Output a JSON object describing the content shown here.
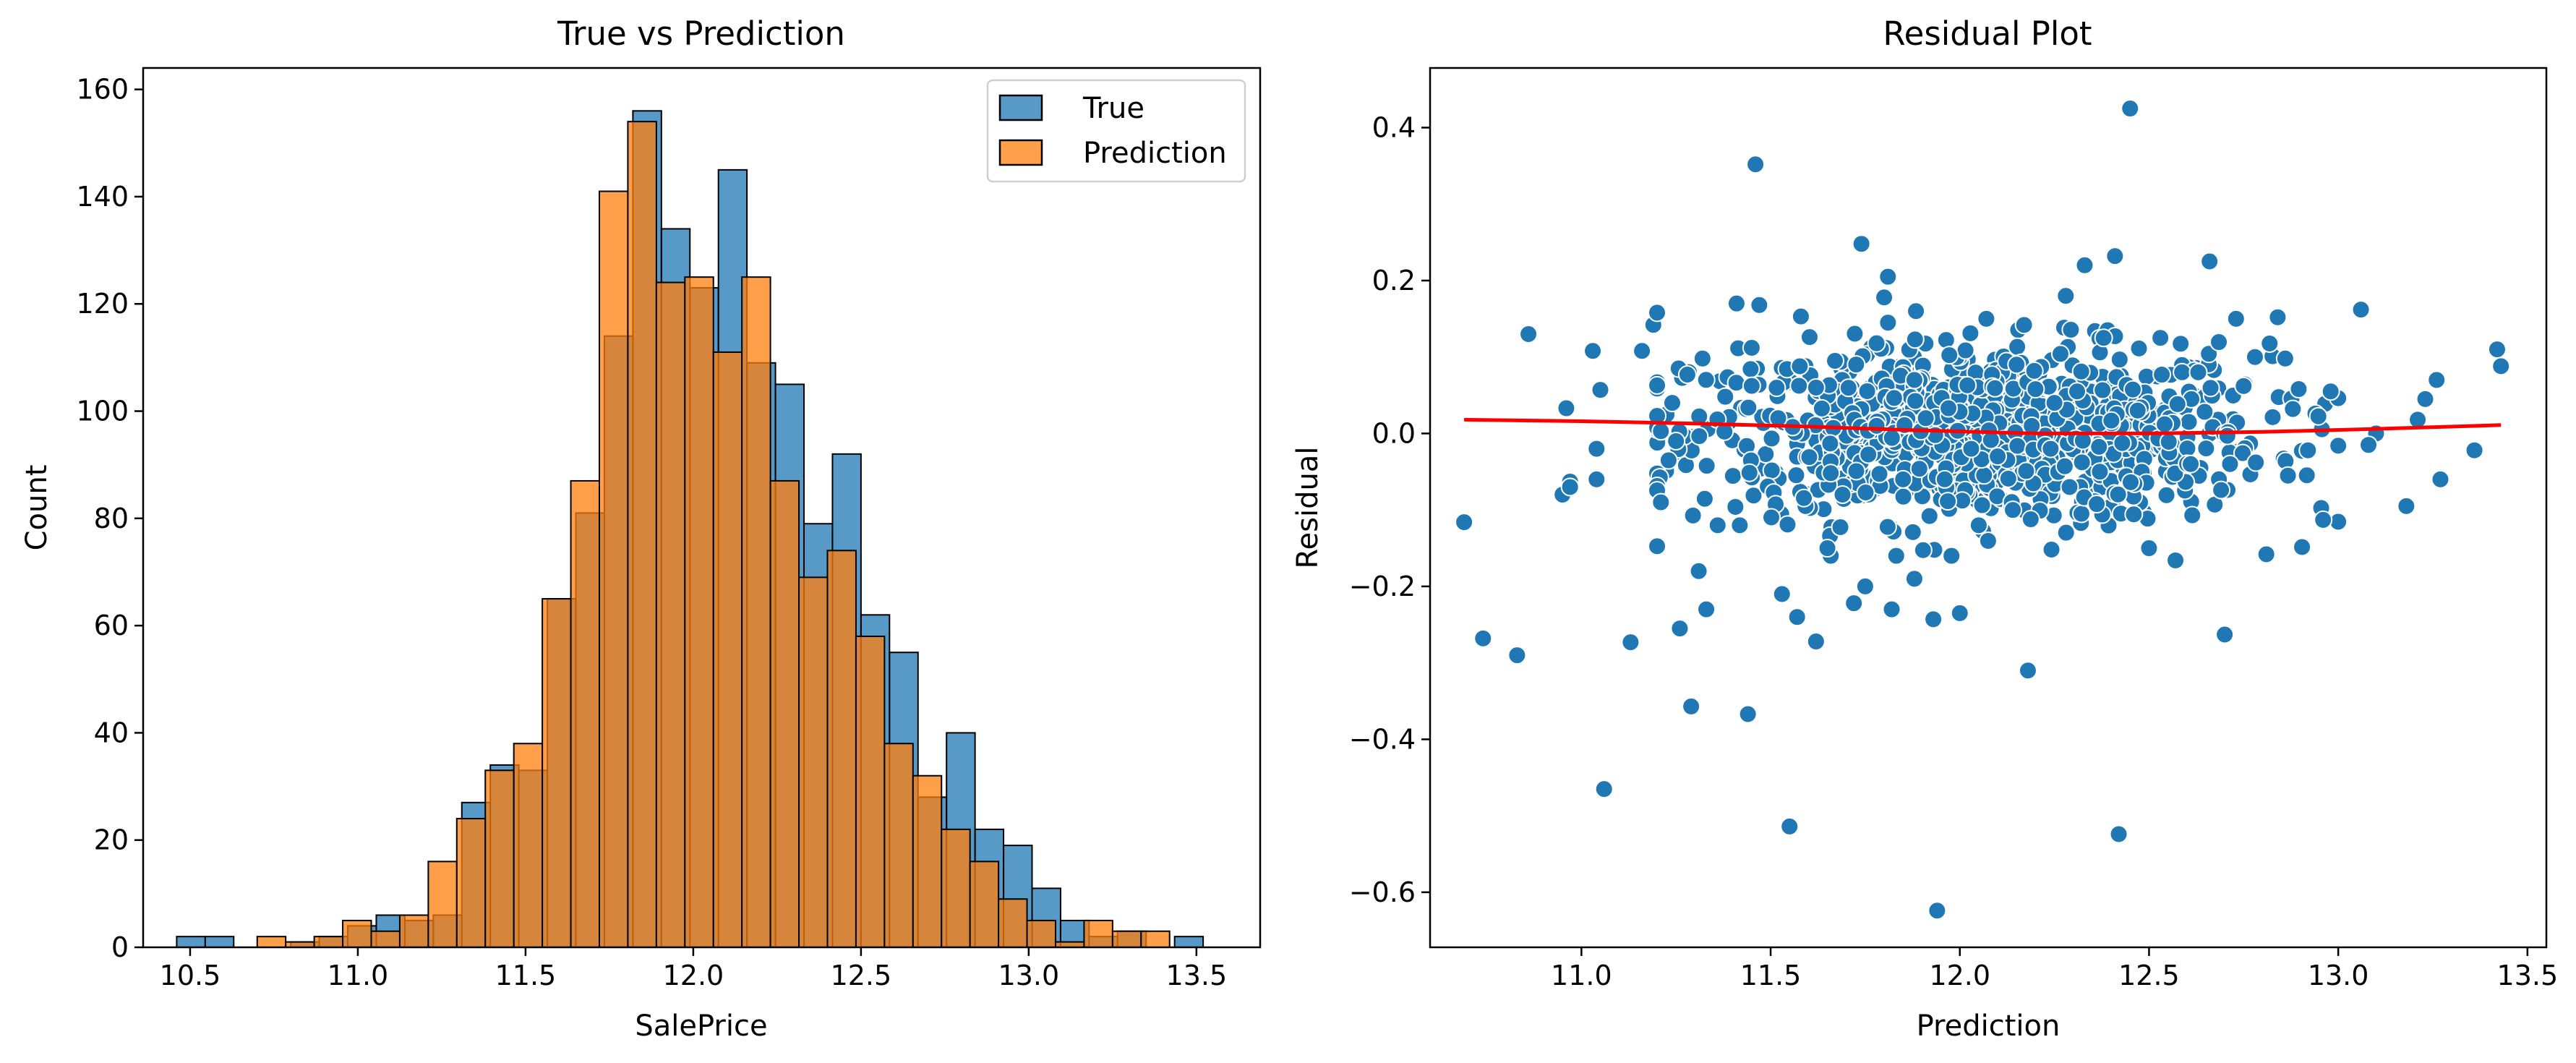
{
  "colors": {
    "true_bar": "#1f77b4",
    "prediction_bar": "#ff7f0e",
    "scatter_point": "#1f77b4",
    "trend_line": "#ff0000"
  },
  "chart_data": [
    {
      "type": "histogram",
      "title": "True vs Prediction",
      "xlabel": "SalePrice",
      "ylabel": "Count",
      "xlim": [
        10.36,
        13.69
      ],
      "ylim": [
        0,
        164
      ],
      "xticks": [
        10.5,
        11.0,
        11.5,
        12.0,
        12.5,
        13.0,
        13.5
      ],
      "xtick_labels": [
        "10.5",
        "11.0",
        "11.5",
        "12.0",
        "12.5",
        "13.0",
        "13.5"
      ],
      "yticks": [
        0,
        20,
        40,
        60,
        80,
        100,
        120,
        140,
        160
      ],
      "ytick_labels": [
        "0",
        "20",
        "40",
        "60",
        "80",
        "100",
        "120",
        "140",
        "160"
      ],
      "legend": "top-right",
      "series": [
        {
          "name": "True",
          "bins": [
            [
              10.46,
              10.545,
              2
            ],
            [
              10.545,
              10.63,
              2
            ],
            [
              10.8,
              10.885,
              1
            ],
            [
              10.885,
              10.97,
              2
            ],
            [
              10.97,
              11.055,
              4
            ],
            [
              11.055,
              11.14,
              6
            ],
            [
              11.14,
              11.225,
              5
            ],
            [
              11.225,
              11.31,
              6
            ],
            [
              11.31,
              11.395,
              27
            ],
            [
              11.395,
              11.48,
              34
            ],
            [
              11.48,
              11.565,
              33
            ],
            [
              11.565,
              11.65,
              65
            ],
            [
              11.65,
              11.735,
              81
            ],
            [
              11.735,
              11.82,
              114
            ],
            [
              11.82,
              11.905,
              156
            ],
            [
              11.905,
              11.99,
              134
            ],
            [
              11.99,
              12.075,
              123
            ],
            [
              12.075,
              12.16,
              145
            ],
            [
              12.16,
              12.245,
              109
            ],
            [
              12.245,
              12.33,
              105
            ],
            [
              12.33,
              12.415,
              79
            ],
            [
              12.415,
              12.5,
              92
            ],
            [
              12.5,
              12.585,
              62
            ],
            [
              12.585,
              12.67,
              55
            ],
            [
              12.67,
              12.755,
              28
            ],
            [
              12.755,
              12.84,
              40
            ],
            [
              12.84,
              12.925,
              22
            ],
            [
              12.925,
              13.01,
              19
            ],
            [
              13.01,
              13.095,
              11
            ],
            [
              13.095,
              13.18,
              5
            ],
            [
              13.18,
              13.265,
              2
            ],
            [
              13.265,
              13.35,
              3
            ],
            [
              13.435,
              13.52,
              2
            ]
          ]
        },
        {
          "name": "Prediction",
          "bins": [
            [
              10.7,
              10.785,
              2
            ],
            [
              10.785,
              10.87,
              1
            ],
            [
              10.87,
              10.955,
              2
            ],
            [
              10.955,
              11.04,
              5
            ],
            [
              11.04,
              11.125,
              3
            ],
            [
              11.125,
              11.21,
              6
            ],
            [
              11.21,
              11.295,
              16
            ],
            [
              11.295,
              11.38,
              24
            ],
            [
              11.38,
              11.465,
              33
            ],
            [
              11.465,
              11.55,
              38
            ],
            [
              11.55,
              11.635,
              65
            ],
            [
              11.635,
              11.72,
              87
            ],
            [
              11.72,
              11.805,
              141
            ],
            [
              11.805,
              11.89,
              154
            ],
            [
              11.89,
              11.975,
              124
            ],
            [
              11.975,
              12.06,
              125
            ],
            [
              12.06,
              12.145,
              111
            ],
            [
              12.145,
              12.23,
              125
            ],
            [
              12.23,
              12.315,
              87
            ],
            [
              12.315,
              12.4,
              69
            ],
            [
              12.4,
              12.485,
              74
            ],
            [
              12.485,
              12.57,
              58
            ],
            [
              12.57,
              12.655,
              38
            ],
            [
              12.655,
              12.74,
              32
            ],
            [
              12.74,
              12.825,
              22
            ],
            [
              12.825,
              12.91,
              16
            ],
            [
              12.91,
              12.995,
              9
            ],
            [
              12.995,
              13.08,
              5
            ],
            [
              13.08,
              13.165,
              1
            ],
            [
              13.165,
              13.25,
              5
            ],
            [
              13.25,
              13.335,
              3
            ],
            [
              13.335,
              13.42,
              3
            ]
          ]
        }
      ]
    },
    {
      "type": "scatter",
      "title": "Residual Plot",
      "xlabel": "Prediction",
      "ylabel": "Residual",
      "xlim": [
        10.6,
        13.55
      ],
      "ylim": [
        -0.672,
        0.478
      ],
      "xticks": [
        11.0,
        11.5,
        12.0,
        12.5,
        13.0,
        13.5
      ],
      "xtick_labels": [
        "11.0",
        "11.5",
        "12.0",
        "12.5",
        "13.0",
        "13.5"
      ],
      "yticks": [
        -0.6,
        -0.4,
        -0.2,
        0.0,
        0.2,
        0.4
      ],
      "ytick_labels": [
        "−0.6",
        "−0.4",
        "−0.2",
        "0.0",
        "0.2",
        "0.4"
      ],
      "points": [
        [
          10.69,
          -0.116
        ],
        [
          10.74,
          -0.268
        ],
        [
          10.83,
          -0.29
        ],
        [
          10.86,
          0.13
        ],
        [
          10.95,
          -0.08
        ],
        [
          10.96,
          0.033
        ],
        [
          10.97,
          -0.063
        ],
        [
          10.97,
          -0.07
        ],
        [
          11.03,
          0.108
        ],
        [
          11.04,
          -0.02
        ],
        [
          11.04,
          -0.06
        ],
        [
          11.05,
          0.057
        ],
        [
          11.06,
          -0.465
        ],
        [
          11.13,
          -0.273
        ],
        [
          11.16,
          0.108
        ],
        [
          11.19,
          0.142
        ],
        [
          11.2,
          0.158
        ],
        [
          11.2,
          0.023
        ],
        [
          11.21,
          -0.09
        ],
        [
          11.21,
          0.003
        ],
        [
          11.24,
          0.04
        ],
        [
          11.25,
          -0.01
        ],
        [
          11.26,
          -0.255
        ],
        [
          11.28,
          0.077
        ],
        [
          11.29,
          -0.357
        ],
        [
          11.31,
          -0.18
        ],
        [
          11.32,
          0.098
        ],
        [
          11.33,
          -0.23
        ],
        [
          11.36,
          -0.12
        ],
        [
          11.38,
          0.048
        ],
        [
          11.41,
          0.17
        ],
        [
          11.44,
          -0.367
        ],
        [
          11.45,
          0.112
        ],
        [
          11.46,
          0.352
        ],
        [
          11.47,
          0.168
        ],
        [
          11.53,
          -0.21
        ],
        [
          11.55,
          -0.514
        ],
        [
          11.57,
          -0.24
        ],
        [
          11.58,
          0.153
        ],
        [
          11.62,
          -0.272
        ],
        [
          11.67,
          0.095
        ],
        [
          11.72,
          -0.222
        ],
        [
          11.74,
          0.248
        ],
        [
          11.75,
          -0.2
        ],
        [
          11.78,
          0.118
        ],
        [
          11.8,
          0.178
        ],
        [
          11.81,
          0.205
        ],
        [
          11.82,
          -0.23
        ],
        [
          11.85,
          -0.06
        ],
        [
          11.88,
          -0.19
        ],
        [
          11.93,
          -0.243
        ],
        [
          11.94,
          -0.624
        ],
        [
          11.97,
          0.033
        ],
        [
          12.0,
          -0.235
        ],
        [
          12.02,
          0.063
        ],
        [
          12.07,
          0.15
        ],
        [
          12.14,
          -0.1
        ],
        [
          12.18,
          -0.31
        ],
        [
          12.2,
          0.058
        ],
        [
          12.24,
          -0.02
        ],
        [
          12.28,
          0.18
        ],
        [
          12.31,
          0.055
        ],
        [
          12.33,
          0.22
        ],
        [
          12.38,
          0.125
        ],
        [
          12.41,
          0.232
        ],
        [
          12.42,
          -0.524
        ],
        [
          12.45,
          0.425
        ],
        [
          12.5,
          -0.15
        ],
        [
          12.53,
          0.125
        ],
        [
          12.57,
          -0.166
        ],
        [
          12.63,
          0.08
        ],
        [
          12.66,
          0.225
        ],
        [
          12.7,
          -0.263
        ],
        [
          12.73,
          0.15
        ],
        [
          12.75,
          0.062
        ],
        [
          12.78,
          0.1
        ],
        [
          12.81,
          -0.158
        ],
        [
          12.84,
          0.152
        ],
        [
          12.86,
          0.098
        ],
        [
          12.88,
          0.032
        ],
        [
          12.92,
          -0.022
        ],
        [
          12.96,
          -0.113
        ],
        [
          12.98,
          0.055
        ],
        [
          13.06,
          0.162
        ],
        [
          13.1,
          0.0
        ],
        [
          13.18,
          -0.095
        ],
        [
          13.21,
          0.018
        ],
        [
          13.23,
          0.045
        ],
        [
          13.26,
          0.07
        ],
        [
          13.27,
          -0.06
        ],
        [
          13.36,
          -0.022
        ],
        [
          13.42,
          0.11
        ],
        [
          13.43,
          0.088
        ],
        [
          13.08,
          -0.015
        ],
        [
          12.05,
          -0.12
        ],
        [
          11.65,
          -0.15
        ],
        [
          11.78,
          0.01
        ],
        [
          11.91,
          0.02
        ],
        [
          12.1,
          -0.03
        ],
        [
          12.25,
          0.04
        ],
        [
          12.37,
          -0.05
        ],
        [
          11.62,
          0.06
        ],
        [
          11.69,
          -0.08
        ],
        [
          11.88,
          0.07
        ],
        [
          12.03,
          -0.02
        ],
        [
          12.15,
          0.09
        ],
        [
          12.29,
          -0.07
        ],
        [
          12.47,
          0.03
        ],
        [
          12.61,
          -0.04
        ],
        [
          11.52,
          0.02
        ],
        [
          11.96,
          -0.06
        ],
        [
          12.19,
          0.01
        ]
      ],
      "trend_line": [
        [
          10.69,
          0.018
        ],
        [
          11.0,
          0.016
        ],
        [
          11.3,
          0.013
        ],
        [
          11.6,
          0.009
        ],
        [
          11.9,
          0.004
        ],
        [
          12.2,
          0.0
        ],
        [
          12.5,
          0.0
        ],
        [
          12.8,
          0.002
        ],
        [
          13.1,
          0.006
        ],
        [
          13.43,
          0.011
        ]
      ]
    }
  ]
}
